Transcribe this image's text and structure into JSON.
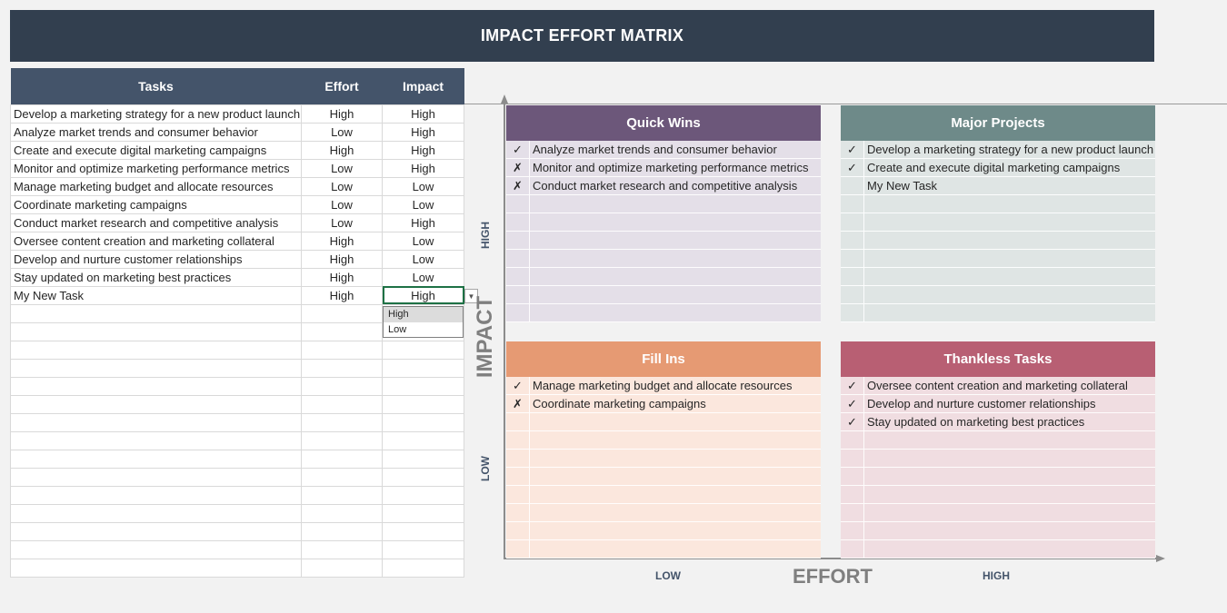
{
  "title": "IMPACT EFFORT MATRIX",
  "table": {
    "headers": [
      "Tasks",
      "Effort",
      "Impact"
    ],
    "rows": [
      {
        "task": "Develop a marketing strategy for a new product launch",
        "effort": "High",
        "impact": "High"
      },
      {
        "task": "Analyze market trends and consumer behavior",
        "effort": "Low",
        "impact": "High"
      },
      {
        "task": "Create and execute digital marketing campaigns",
        "effort": "High",
        "impact": "High"
      },
      {
        "task": "Monitor and optimize marketing performance metrics",
        "effort": "Low",
        "impact": "High"
      },
      {
        "task": "Manage marketing budget and allocate resources",
        "effort": "Low",
        "impact": "Low"
      },
      {
        "task": "Coordinate marketing campaigns",
        "effort": "Low",
        "impact": "Low"
      },
      {
        "task": "Conduct market research and competitive analysis",
        "effort": "Low",
        "impact": "High"
      },
      {
        "task": "Oversee content creation and marketing collateral",
        "effort": "High",
        "impact": "Low"
      },
      {
        "task": "Develop and nurture customer relationships",
        "effort": "High",
        "impact": "Low"
      },
      {
        "task": "Stay updated on marketing best practices",
        "effort": "High",
        "impact": "Low"
      },
      {
        "task": "My New Task",
        "effort": "High",
        "impact": "High"
      }
    ],
    "dropdown_options": [
      "High",
      "Low"
    ],
    "dropdown_highlighted": "High"
  },
  "axes": {
    "y_title": "IMPACT",
    "y_high": "HIGH",
    "y_low": "LOW",
    "x_title": "EFFORT",
    "x_low": "LOW",
    "x_high": "HIGH"
  },
  "quadrants": [
    {
      "key": "quick_wins",
      "title": "Quick Wins",
      "head_color": "#6c577a",
      "body_color": "#e4dfe8",
      "items": [
        {
          "mark": "✓",
          "text": "Analyze market trends and consumer behavior"
        },
        {
          "mark": "✗",
          "text": "Monitor and optimize marketing performance metrics"
        },
        {
          "mark": "✗",
          "text": "Conduct market research and competitive analysis"
        }
      ]
    },
    {
      "key": "major_projects",
      "title": "Major Projects",
      "head_color": "#6e8a89",
      "body_color": "#dfe5e4",
      "items": [
        {
          "mark": "✓",
          "text": "Develop a marketing strategy for a new product launch"
        },
        {
          "mark": "✓",
          "text": "Create and execute digital marketing campaigns"
        },
        {
          "mark": "",
          "text": "My New Task"
        }
      ]
    },
    {
      "key": "fill_ins",
      "title": "Fill Ins",
      "head_color": "#e69a73",
      "body_color": "#fbe7dd",
      "items": [
        {
          "mark": "✓",
          "text": "Manage marketing budget and allocate resources"
        },
        {
          "mark": "✗",
          "text": "Coordinate marketing campaigns"
        }
      ]
    },
    {
      "key": "thankless_tasks",
      "title": "Thankless Tasks",
      "head_color": "#b85f73",
      "body_color": "#f0dde1",
      "items": [
        {
          "mark": "✓",
          "text": "Oversee content creation and marketing collateral"
        },
        {
          "mark": "✓",
          "text": "Develop and nurture customer relationships"
        },
        {
          "mark": "✓",
          "text": "Stay updated on marketing best practices"
        }
      ]
    }
  ]
}
